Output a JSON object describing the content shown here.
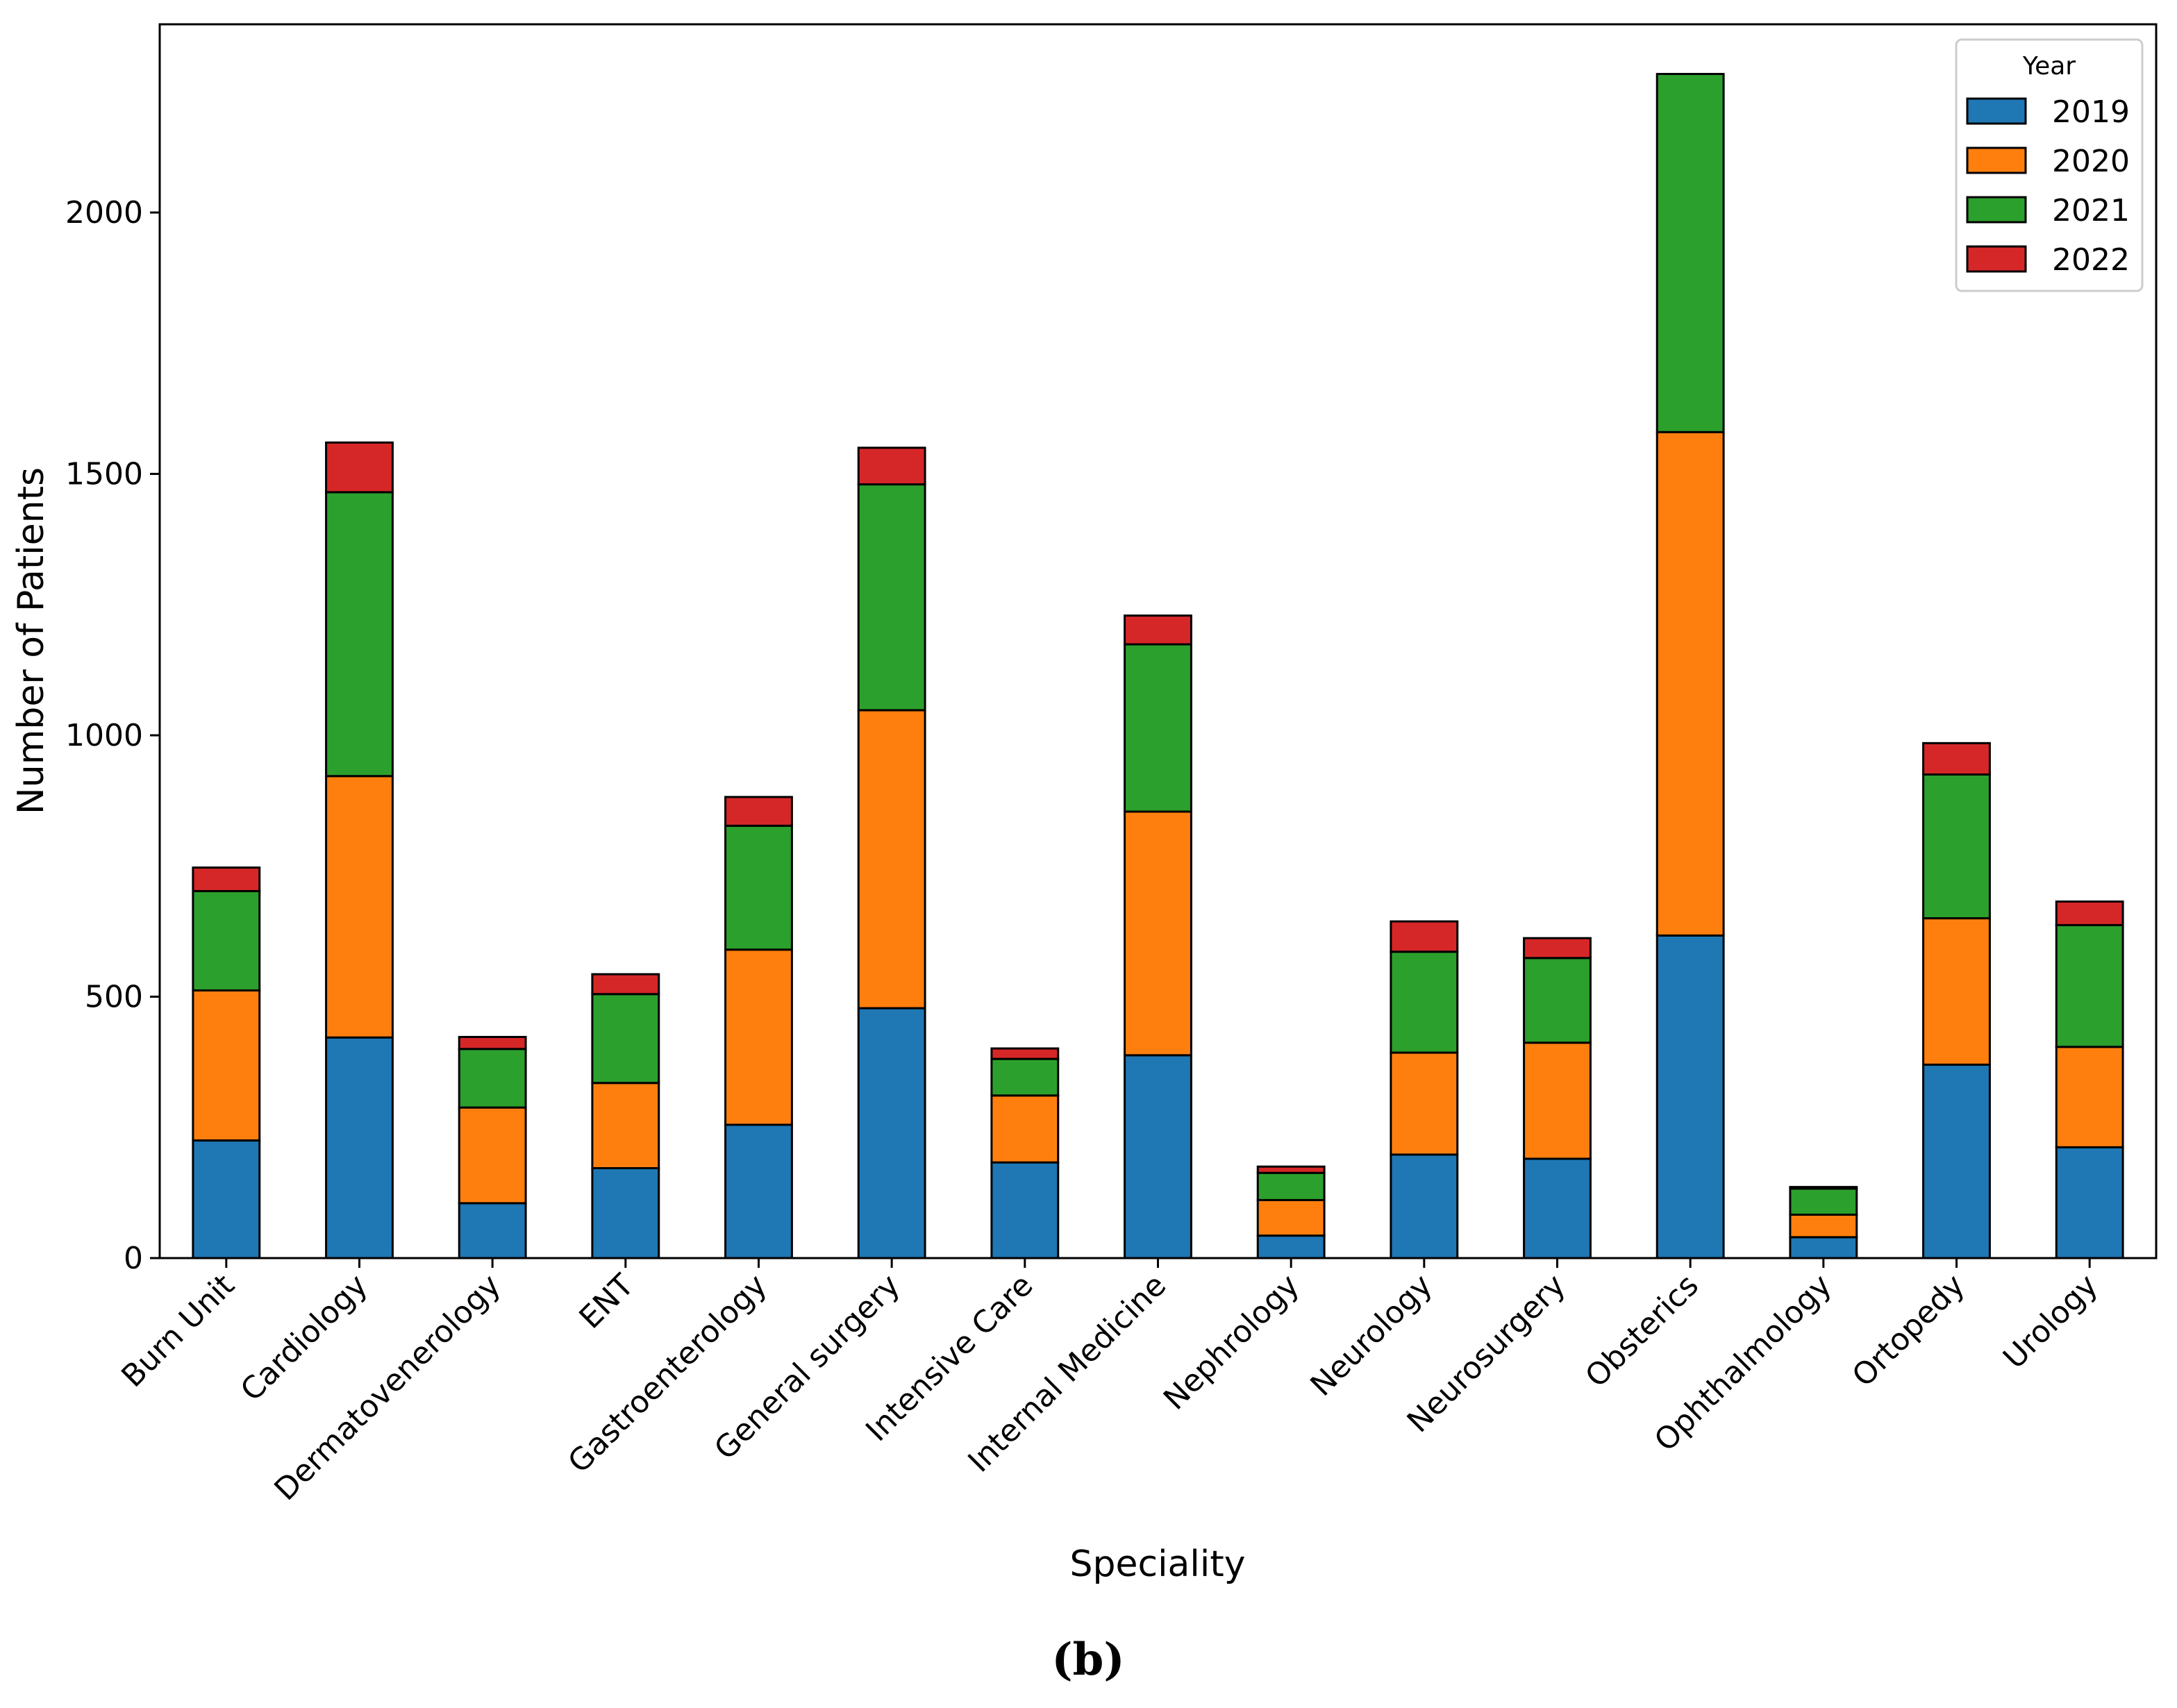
{
  "chart_data": {
    "type": "bar",
    "stacked": true,
    "title": "",
    "xlabel": "Speciality",
    "ylabel": "Number of Patients",
    "ylim": [
      0,
      2360
    ],
    "yticks": [
      0,
      500,
      1000,
      1500,
      2000
    ],
    "grid": false,
    "legend_position": "top-right",
    "legend_title": "Year",
    "caption": "(b)",
    "categories": [
      "Burn Unit",
      "Cardiology",
      "Dermatovenerology",
      "ENT",
      "Gastroenterology",
      "General surgery",
      "Intensive Care",
      "Internal Medicine",
      "Nephrology",
      "Neurology",
      "Neurosurgery",
      "Obsterics",
      "Ophthalmology",
      "Ortopedy",
      "Urology"
    ],
    "series": [
      {
        "name": "2019",
        "color": "#1f77b4",
        "values": [
          225,
          422,
          105,
          172,
          255,
          478,
          183,
          388,
          43,
          198,
          190,
          617,
          40,
          370,
          212
        ]
      },
      {
        "name": "2020",
        "color": "#ff7f0e",
        "values": [
          287,
          500,
          183,
          163,
          335,
          570,
          128,
          466,
          68,
          195,
          222,
          963,
          43,
          280,
          192
        ]
      },
      {
        "name": "2021",
        "color": "#2ca02c",
        "values": [
          190,
          543,
          112,
          170,
          237,
          432,
          70,
          320,
          52,
          193,
          162,
          685,
          50,
          275,
          233
        ]
      },
      {
        "name": "2022",
        "color": "#d62728",
        "values": [
          45,
          95,
          23,
          38,
          55,
          70,
          20,
          55,
          12,
          58,
          38,
          0,
          3,
          60,
          45
        ]
      }
    ]
  }
}
